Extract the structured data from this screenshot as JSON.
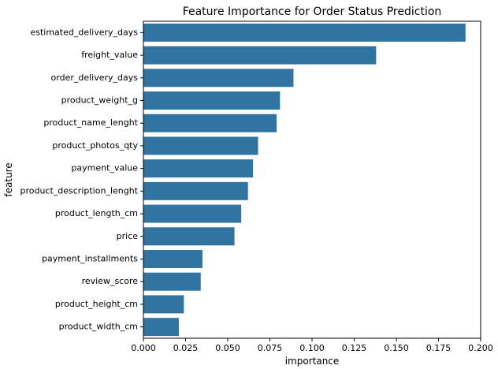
{
  "chart_data": {
    "type": "bar",
    "orientation": "horizontal",
    "title": "Feature Importance for Order Status Prediction",
    "xlabel": "importance",
    "ylabel": "feature",
    "xlim": [
      0,
      0.2
    ],
    "xticks": [
      0.0,
      0.025,
      0.05,
      0.075,
      0.1,
      0.125,
      0.15,
      0.175,
      0.2
    ],
    "xtick_labels": [
      "0.000",
      "0.025",
      "0.050",
      "0.075",
      "0.100",
      "0.125",
      "0.150",
      "0.175",
      "0.200"
    ],
    "categories": [
      "estimated_delivery_days",
      "freight_value",
      "order_delivery_days",
      "product_weight_g",
      "product_name_lenght",
      "product_photos_qty",
      "payment_value",
      "product_description_lenght",
      "product_length_cm",
      "price",
      "payment_installments",
      "review_score",
      "product_height_cm",
      "product_width_cm"
    ],
    "values": [
      0.191,
      0.138,
      0.089,
      0.081,
      0.079,
      0.068,
      0.065,
      0.062,
      0.058,
      0.054,
      0.035,
      0.034,
      0.024,
      0.021
    ],
    "bar_color": "#3274a1",
    "grid": false,
    "legend": "none"
  }
}
